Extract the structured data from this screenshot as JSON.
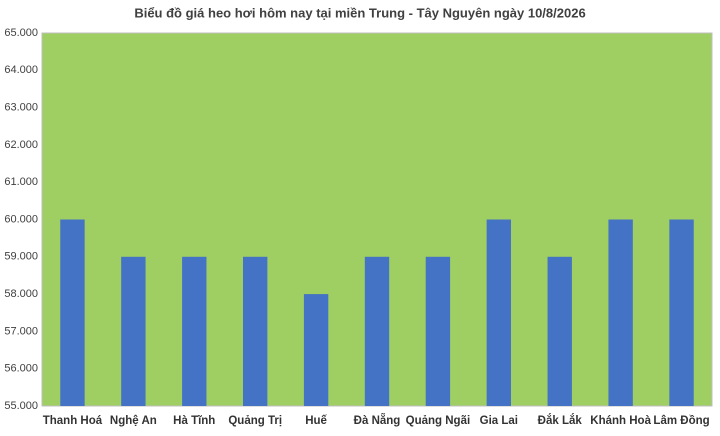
{
  "chart_data": {
    "type": "bar",
    "title": "Biểu đồ giá heo hơi hôm nay tại miền Trung - Tây Nguyên ngày 10/8/2026",
    "categories": [
      "Thanh Hoá",
      "Nghệ An",
      "Hà Tĩnh",
      "Quảng Trị",
      "Huế",
      "Đà Nẵng",
      "Quảng Ngãi",
      "Gia Lai",
      "Đắk Lắk",
      "Khánh Hoà",
      "Lâm Đồng"
    ],
    "values": [
      60000,
      59000,
      59000,
      59000,
      58000,
      59000,
      59000,
      60000,
      59000,
      60000,
      60000
    ],
    "color": "#4472c4",
    "ylim": [
      55000,
      65000
    ],
    "yticks": [
      {
        "value": 55000,
        "label": "55.000"
      },
      {
        "value": 56000,
        "label": "56.000"
      },
      {
        "value": 57000,
        "label": "57.000"
      },
      {
        "value": 58000,
        "label": "58.000"
      },
      {
        "value": 59000,
        "label": "59.000"
      },
      {
        "value": 60000,
        "label": "60.000"
      },
      {
        "value": 61000,
        "label": "61.000"
      },
      {
        "value": 62000,
        "label": "62.000"
      },
      {
        "value": 63000,
        "label": "63.000"
      },
      {
        "value": 64000,
        "label": "64.000"
      },
      {
        "value": 65000,
        "label": "65.000"
      }
    ],
    "grid": false
  }
}
